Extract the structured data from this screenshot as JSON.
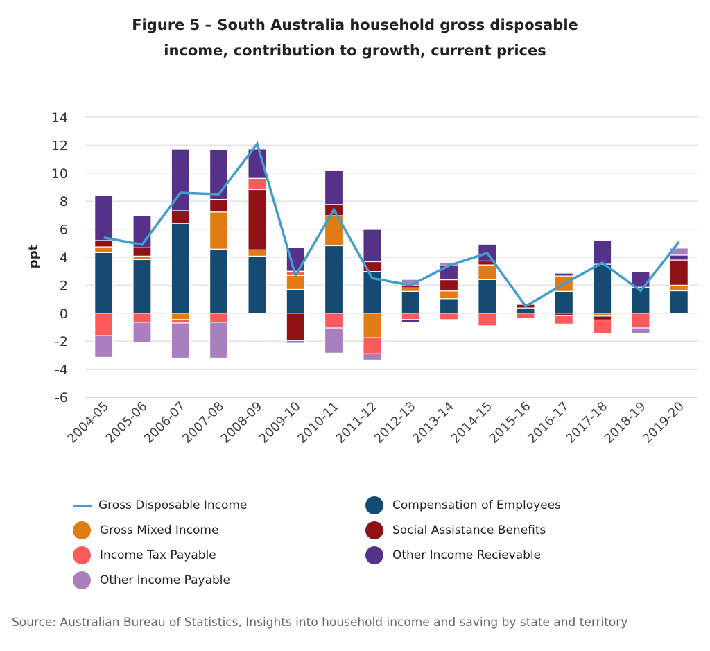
{
  "chart_data": {
    "type": "bar",
    "stacked": true,
    "title": "Figure 5 – South Australia household gross disposable income, contribution to growth, current prices",
    "title_lines": [
      "Figure 5 – South Australia household gross disposable",
      "income, contribution to growth, current prices"
    ],
    "xlabel": "",
    "ylabel": "ppt",
    "ylim": [
      -6,
      14
    ],
    "yticks": [
      14,
      12,
      10,
      8,
      6,
      4,
      2,
      0,
      -2,
      -4,
      -6
    ],
    "grid": true,
    "legend_position": "bottom",
    "categories": [
      "2004-05",
      "2005-06",
      "2006-07",
      "2007-08",
      "2008-09",
      "2009-10",
      "2010-11",
      "2011-12",
      "2012-13",
      "2013-14",
      "2014-15",
      "2015-16",
      "2016-17",
      "2017-18",
      "2018-19",
      "2019-20"
    ],
    "series": [
      {
        "name": "Compensation of Employees",
        "kind": "bar",
        "color": "#154b72",
        "values": [
          4.33,
          3.83,
          6.42,
          4.58,
          4.08,
          1.7,
          4.82,
          2.98,
          1.56,
          1.04,
          2.4,
          0.38,
          1.56,
          3.5,
          1.86,
          1.6
        ]
      },
      {
        "name": "Gross Mixed Income",
        "kind": "bar",
        "color": "#e07c14",
        "values": [
          0.41,
          0.25,
          -0.45,
          2.65,
          0.45,
          1.0,
          2.15,
          -1.75,
          0.25,
          0.55,
          1.05,
          0,
          1.1,
          -0.2,
          0,
          0.4
        ]
      },
      {
        "name": "Social Assistance Benefits",
        "kind": "bar",
        "color": "#8f1216",
        "values": [
          0.45,
          0.6,
          0.9,
          0.9,
          4.3,
          -1.95,
          0.8,
          0.7,
          0.15,
          0.8,
          0.28,
          0.25,
          -0.17,
          -0.28,
          0,
          1.8
        ]
      },
      {
        "name": "Income Tax Payable",
        "kind": "bar",
        "color": "#fd5b5b",
        "values": [
          -1.6,
          -0.65,
          -0.25,
          -0.65,
          0.8,
          0.3,
          -1.05,
          -1.15,
          -0.45,
          -0.45,
          -0.9,
          -0.35,
          -0.6,
          -0.95,
          -1.05,
          0
        ]
      },
      {
        "name": "Other Income Recievable",
        "kind": "bar",
        "color": "#56318a",
        "values": [
          3.2,
          2.3,
          4.4,
          3.55,
          2.1,
          1.7,
          2.4,
          2.3,
          -0.2,
          1.0,
          1.2,
          0,
          0.2,
          1.7,
          1.1,
          0.35
        ]
      },
      {
        "name": "Other Income Payable",
        "kind": "bar",
        "color": "#a97fbf",
        "values": [
          -1.55,
          -1.45,
          -2.5,
          -2.55,
          0,
          -0.2,
          -1.8,
          -0.45,
          0.45,
          0.2,
          0,
          0,
          0,
          0,
          -0.4,
          0.5
        ]
      },
      {
        "name": "Gross Disposable Income",
        "kind": "line",
        "color": "#429dcc",
        "values": [
          5.4,
          4.9,
          8.6,
          8.5,
          12.1,
          2.7,
          7.4,
          2.5,
          2.0,
          3.4,
          4.3,
          0.5,
          2.1,
          3.6,
          1.6,
          5.1
        ]
      }
    ]
  },
  "legend": {
    "items": [
      {
        "label": "Gross Disposable Income",
        "shape": "line",
        "color": "#429dcc"
      },
      {
        "label": "Compensation of Employees",
        "shape": "circle",
        "color": "#154b72"
      },
      {
        "label": "Gross Mixed Income",
        "shape": "circle",
        "color": "#e07c14"
      },
      {
        "label": "Social Assistance Benefits",
        "shape": "circle",
        "color": "#8f1216"
      },
      {
        "label": "Income Tax Payable",
        "shape": "circle",
        "color": "#fd5b5b"
      },
      {
        "label": "Other Income Recievable",
        "shape": "circle",
        "color": "#56318a"
      },
      {
        "label": "Other Income Payable",
        "shape": "circle",
        "color": "#a97fbf"
      }
    ]
  },
  "source": "Source: Australian Bureau of Statistics, Insights into household income and saving by state and territory"
}
